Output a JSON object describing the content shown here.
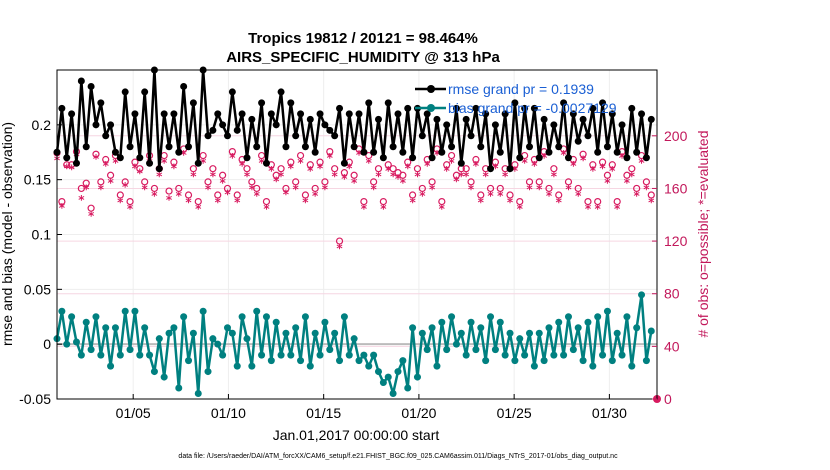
{
  "chart_data": {
    "type": "line",
    "title": "Tropics 19812 / 20121 = 98.464%",
    "subtitle": "AIRS_SPECIFIC_HUMIDITY @ 313 hPa",
    "xlabel": "Jan.01,2017 00:00:00 start",
    "ylabel": "rmse and bias (model - observation)",
    "ylabel_right": "# of obs: o=possible; *=evaluated",
    "footer": "data file: /Users/raeder/DAI/ATM_forcXX/CAM6_setup/f.e21.FHIST_BGC.f09_025.CAM6assim.011/Diags_NTrS_2017-01/obs_diag_output.nc",
    "xlim": [
      1,
      32.5
    ],
    "ylim": [
      -0.05,
      0.25
    ],
    "ylim_right": [
      0,
      250
    ],
    "x_ticks": [
      5,
      10,
      15,
      20,
      25,
      30
    ],
    "x_tick_labels": [
      "01/05",
      "01/10",
      "01/15",
      "01/20",
      "01/25",
      "01/30"
    ],
    "y_ticks": [
      -0.05,
      0,
      0.05,
      0.1,
      0.15,
      0.2
    ],
    "y_tick_labels": [
      "-0.05",
      "0",
      "0.05",
      "0.1",
      "0.15",
      "0.2"
    ],
    "y_right_ticks": [
      0,
      40,
      80,
      120,
      160,
      200
    ],
    "y_right_tick_labels": [
      "0",
      "40",
      "80",
      "120",
      "160",
      "200"
    ],
    "legend": [
      {
        "name": "rmse grand pr = 0.1939",
        "color": "#000000"
      },
      {
        "name": "bias grand pr = -0.0027129",
        "color": "#008080"
      }
    ],
    "colors": {
      "rmse": "#000000",
      "bias": "#008080",
      "counts": "#d81b60",
      "zero_line": "#bbbbbb"
    },
    "series": [
      {
        "name": "rmse",
        "values": [
          0.175,
          0.215,
          0.17,
          0.21,
          0.165,
          0.24,
          0.18,
          0.235,
          0.2,
          0.22,
          0.19,
          0.2,
          0.175,
          0.17,
          0.23,
          0.18,
          0.21,
          0.17,
          0.23,
          0.165,
          0.25,
          0.16,
          0.21,
          0.18,
          0.21,
          0.175,
          0.235,
          0.18,
          0.22,
          0.165,
          0.25,
          0.19,
          0.195,
          0.21,
          0.2,
          0.19,
          0.23,
          0.195,
          0.21,
          0.17,
          0.205,
          0.18,
          0.22,
          0.165,
          0.21,
          0.2,
          0.23,
          0.18,
          0.22,
          0.19,
          0.21,
          0.18,
          0.205,
          0.175,
          0.21,
          0.2,
          0.195,
          0.19,
          0.215,
          0.165,
          0.21,
          0.18,
          0.21,
          0.175,
          0.22,
          0.175,
          0.205,
          0.17,
          0.22,
          0.18,
          0.21,
          0.175,
          0.215,
          0.17,
          0.215,
          0.19,
          0.21,
          0.17,
          0.205,
          0.175,
          0.2,
          0.18,
          0.215,
          0.165,
          0.205,
          0.19,
          0.215,
          0.18,
          0.21,
          0.16,
          0.2,
          0.175,
          0.21,
          0.16,
          0.22,
          0.17,
          0.215,
          0.18,
          0.215,
          0.17,
          0.205,
          0.175,
          0.2,
          0.18,
          0.22,
          0.17,
          0.21,
          0.185,
          0.205,
          0.19,
          0.215,
          0.175,
          0.22,
          0.18,
          0.21,
          0.175,
          0.2,
          0.17,
          0.215,
          0.175,
          0.21,
          0.17,
          0.205
        ]
      },
      {
        "name": "bias",
        "values": [
          0.005,
          0.03,
          0.0,
          0.025,
          0.002,
          -0.01,
          0.02,
          -0.005,
          0.025,
          -0.01,
          0.015,
          -0.02,
          0.015,
          -0.01,
          0.03,
          -0.005,
          0.03,
          -0.01,
          0.015,
          -0.01,
          -0.025,
          0.005,
          -0.03,
          0.01,
          0.015,
          -0.04,
          0.025,
          -0.015,
          0.01,
          -0.045,
          0.03,
          -0.025,
          0.005,
          0.0,
          -0.01,
          0.015,
          0.01,
          -0.02,
          0.025,
          0.005,
          -0.02,
          0.03,
          -0.01,
          0.025,
          -0.015,
          0.02,
          -0.01,
          0.01,
          -0.01,
          0.015,
          -0.015,
          0.025,
          -0.02,
          0.01,
          -0.01,
          0.02,
          -0.005,
          0.01,
          -0.015,
          0.025,
          -0.01,
          0.005,
          -0.015,
          -0.01,
          -0.02,
          -0.01,
          -0.025,
          -0.035,
          -0.03,
          -0.045,
          -0.025,
          -0.015,
          -0.04,
          0.015,
          -0.03,
          0.01,
          -0.005,
          0.015,
          -0.02,
          0.02,
          -0.005,
          0.025,
          0.0,
          0.01,
          -0.01,
          0.02,
          -0.005,
          0.015,
          -0.015,
          0.025,
          -0.005,
          0.02,
          -0.01,
          0.01,
          -0.015,
          0.005,
          -0.01,
          0.01,
          -0.02,
          0.01,
          -0.015,
          0.015,
          -0.01,
          0.02,
          -0.01,
          0.025,
          -0.005,
          0.015,
          -0.015,
          0.02,
          -0.02,
          0.025,
          -0.01,
          0.03,
          -0.015,
          0.01,
          -0.01,
          0.025,
          -0.02,
          0.015,
          0.045,
          -0.015,
          0.012
        ]
      },
      {
        "name": "obs possible",
        "values": [
          187,
          150,
          178,
          178,
          188,
          160,
          164,
          145,
          186,
          165,
          182,
          170,
          185,
          155,
          165,
          150,
          180,
          175,
          165,
          185,
          160,
          175,
          185,
          158,
          180,
          160,
          190,
          155,
          175,
          150,
          185,
          165,
          175,
          155,
          170,
          160,
          188,
          155,
          182,
          175,
          165,
          160,
          185,
          150,
          178,
          170,
          175,
          160,
          180,
          165,
          185,
          155,
          178,
          160,
          180,
          165,
          188,
          175,
          120,
          172,
          180,
          170,
          190,
          150,
          185,
          165,
          175,
          150,
          178,
          175,
          172,
          170,
          180,
          155,
          175,
          160,
          182,
          165,
          190,
          150,
          178,
          185,
          170,
          175,
          175,
          165,
          182,
          155,
          175,
          160,
          180,
          160,
          175,
          155,
          178,
          150,
          185,
          165,
          182,
          165,
          188,
          160,
          175,
          155,
          190,
          165,
          182,
          160,
          186,
          150,
          178,
          150,
          180,
          170,
          178,
          150,
          188,
          170,
          175,
          160,
          185,
          165,
          155
        ]
      },
      {
        "name": "obs evaluated",
        "values": [
          182,
          146,
          176,
          175,
          185,
          152,
          160,
          140,
          183,
          160,
          178,
          165,
          180,
          150,
          162,
          145,
          176,
          172,
          160,
          180,
          155,
          170,
          180,
          152,
          176,
          155,
          186,
          150,
          170,
          145,
          180,
          160,
          170,
          150,
          165,
          156,
          184,
          150,
          178,
          170,
          160,
          155,
          180,
          145,
          174,
          166,
          170,
          156,
          176,
          160,
          180,
          150,
          174,
          155,
          176,
          160,
          184,
          170,
          115,
          168,
          176,
          165,
          186,
          145,
          180,
          160,
          170,
          145,
          174,
          170,
          168,
          165,
          176,
          150,
          170,
          155,
          178,
          160,
          186,
          145,
          174,
          180,
          166,
          170,
          170,
          160,
          178,
          150,
          170,
          155,
          176,
          155,
          170,
          150,
          174,
          145,
          180,
          160,
          178,
          160,
          184,
          155,
          170,
          150,
          186,
          160,
          178,
          155,
          182,
          145,
          174,
          145,
          176,
          165,
          174,
          145,
          184,
          165,
          170,
          155,
          180,
          160,
          150
        ]
      }
    ]
  }
}
